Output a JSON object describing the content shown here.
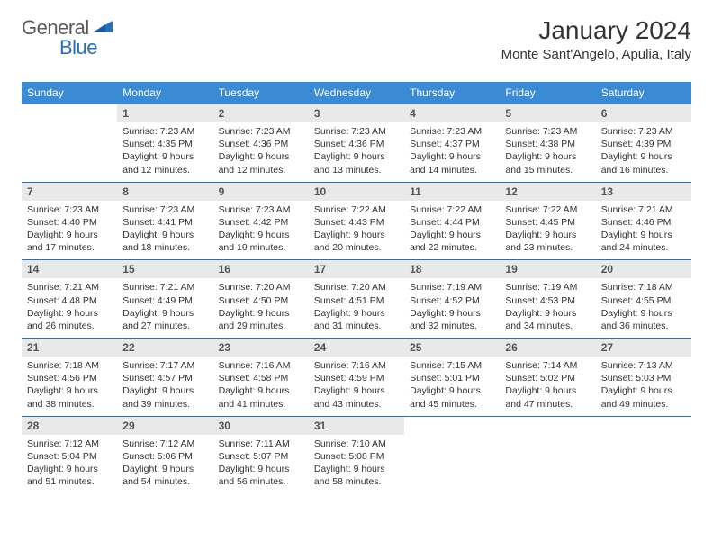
{
  "brand": {
    "general": "General",
    "blue": "Blue"
  },
  "title": "January 2024",
  "location": "Monte Sant'Angelo, Apulia, Italy",
  "colors": {
    "header_bg": "#3b8bd4",
    "header_text": "#ffffff",
    "daynum_bg": "#e9e9e9",
    "row_border": "#2a6fb5",
    "body_text": "#333333",
    "logo_gray": "#5a5a5a",
    "logo_blue": "#2a6fb5"
  },
  "typography": {
    "title_fontsize": 28,
    "location_fontsize": 15,
    "dayheader_fontsize": 12,
    "daynum_fontsize": 12,
    "detail_fontsize": 10.5
  },
  "day_headers": [
    "Sunday",
    "Monday",
    "Tuesday",
    "Wednesday",
    "Thursday",
    "Friday",
    "Saturday"
  ],
  "weeks": [
    {
      "nums": [
        "",
        "1",
        "2",
        "3",
        "4",
        "5",
        "6"
      ],
      "details": [
        "",
        "Sunrise: 7:23 AM\nSunset: 4:35 PM\nDaylight: 9 hours and 12 minutes.",
        "Sunrise: 7:23 AM\nSunset: 4:36 PM\nDaylight: 9 hours and 12 minutes.",
        "Sunrise: 7:23 AM\nSunset: 4:36 PM\nDaylight: 9 hours and 13 minutes.",
        "Sunrise: 7:23 AM\nSunset: 4:37 PM\nDaylight: 9 hours and 14 minutes.",
        "Sunrise: 7:23 AM\nSunset: 4:38 PM\nDaylight: 9 hours and 15 minutes.",
        "Sunrise: 7:23 AM\nSunset: 4:39 PM\nDaylight: 9 hours and 16 minutes."
      ]
    },
    {
      "nums": [
        "7",
        "8",
        "9",
        "10",
        "11",
        "12",
        "13"
      ],
      "details": [
        "Sunrise: 7:23 AM\nSunset: 4:40 PM\nDaylight: 9 hours and 17 minutes.",
        "Sunrise: 7:23 AM\nSunset: 4:41 PM\nDaylight: 9 hours and 18 minutes.",
        "Sunrise: 7:23 AM\nSunset: 4:42 PM\nDaylight: 9 hours and 19 minutes.",
        "Sunrise: 7:22 AM\nSunset: 4:43 PM\nDaylight: 9 hours and 20 minutes.",
        "Sunrise: 7:22 AM\nSunset: 4:44 PM\nDaylight: 9 hours and 22 minutes.",
        "Sunrise: 7:22 AM\nSunset: 4:45 PM\nDaylight: 9 hours and 23 minutes.",
        "Sunrise: 7:21 AM\nSunset: 4:46 PM\nDaylight: 9 hours and 24 minutes."
      ]
    },
    {
      "nums": [
        "14",
        "15",
        "16",
        "17",
        "18",
        "19",
        "20"
      ],
      "details": [
        "Sunrise: 7:21 AM\nSunset: 4:48 PM\nDaylight: 9 hours and 26 minutes.",
        "Sunrise: 7:21 AM\nSunset: 4:49 PM\nDaylight: 9 hours and 27 minutes.",
        "Sunrise: 7:20 AM\nSunset: 4:50 PM\nDaylight: 9 hours and 29 minutes.",
        "Sunrise: 7:20 AM\nSunset: 4:51 PM\nDaylight: 9 hours and 31 minutes.",
        "Sunrise: 7:19 AM\nSunset: 4:52 PM\nDaylight: 9 hours and 32 minutes.",
        "Sunrise: 7:19 AM\nSunset: 4:53 PM\nDaylight: 9 hours and 34 minutes.",
        "Sunrise: 7:18 AM\nSunset: 4:55 PM\nDaylight: 9 hours and 36 minutes."
      ]
    },
    {
      "nums": [
        "21",
        "22",
        "23",
        "24",
        "25",
        "26",
        "27"
      ],
      "details": [
        "Sunrise: 7:18 AM\nSunset: 4:56 PM\nDaylight: 9 hours and 38 minutes.",
        "Sunrise: 7:17 AM\nSunset: 4:57 PM\nDaylight: 9 hours and 39 minutes.",
        "Sunrise: 7:16 AM\nSunset: 4:58 PM\nDaylight: 9 hours and 41 minutes.",
        "Sunrise: 7:16 AM\nSunset: 4:59 PM\nDaylight: 9 hours and 43 minutes.",
        "Sunrise: 7:15 AM\nSunset: 5:01 PM\nDaylight: 9 hours and 45 minutes.",
        "Sunrise: 7:14 AM\nSunset: 5:02 PM\nDaylight: 9 hours and 47 minutes.",
        "Sunrise: 7:13 AM\nSunset: 5:03 PM\nDaylight: 9 hours and 49 minutes."
      ]
    },
    {
      "nums": [
        "28",
        "29",
        "30",
        "31",
        "",
        "",
        ""
      ],
      "details": [
        "Sunrise: 7:12 AM\nSunset: 5:04 PM\nDaylight: 9 hours and 51 minutes.",
        "Sunrise: 7:12 AM\nSunset: 5:06 PM\nDaylight: 9 hours and 54 minutes.",
        "Sunrise: 7:11 AM\nSunset: 5:07 PM\nDaylight: 9 hours and 56 minutes.",
        "Sunrise: 7:10 AM\nSunset: 5:08 PM\nDaylight: 9 hours and 58 minutes.",
        "",
        "",
        ""
      ]
    }
  ]
}
